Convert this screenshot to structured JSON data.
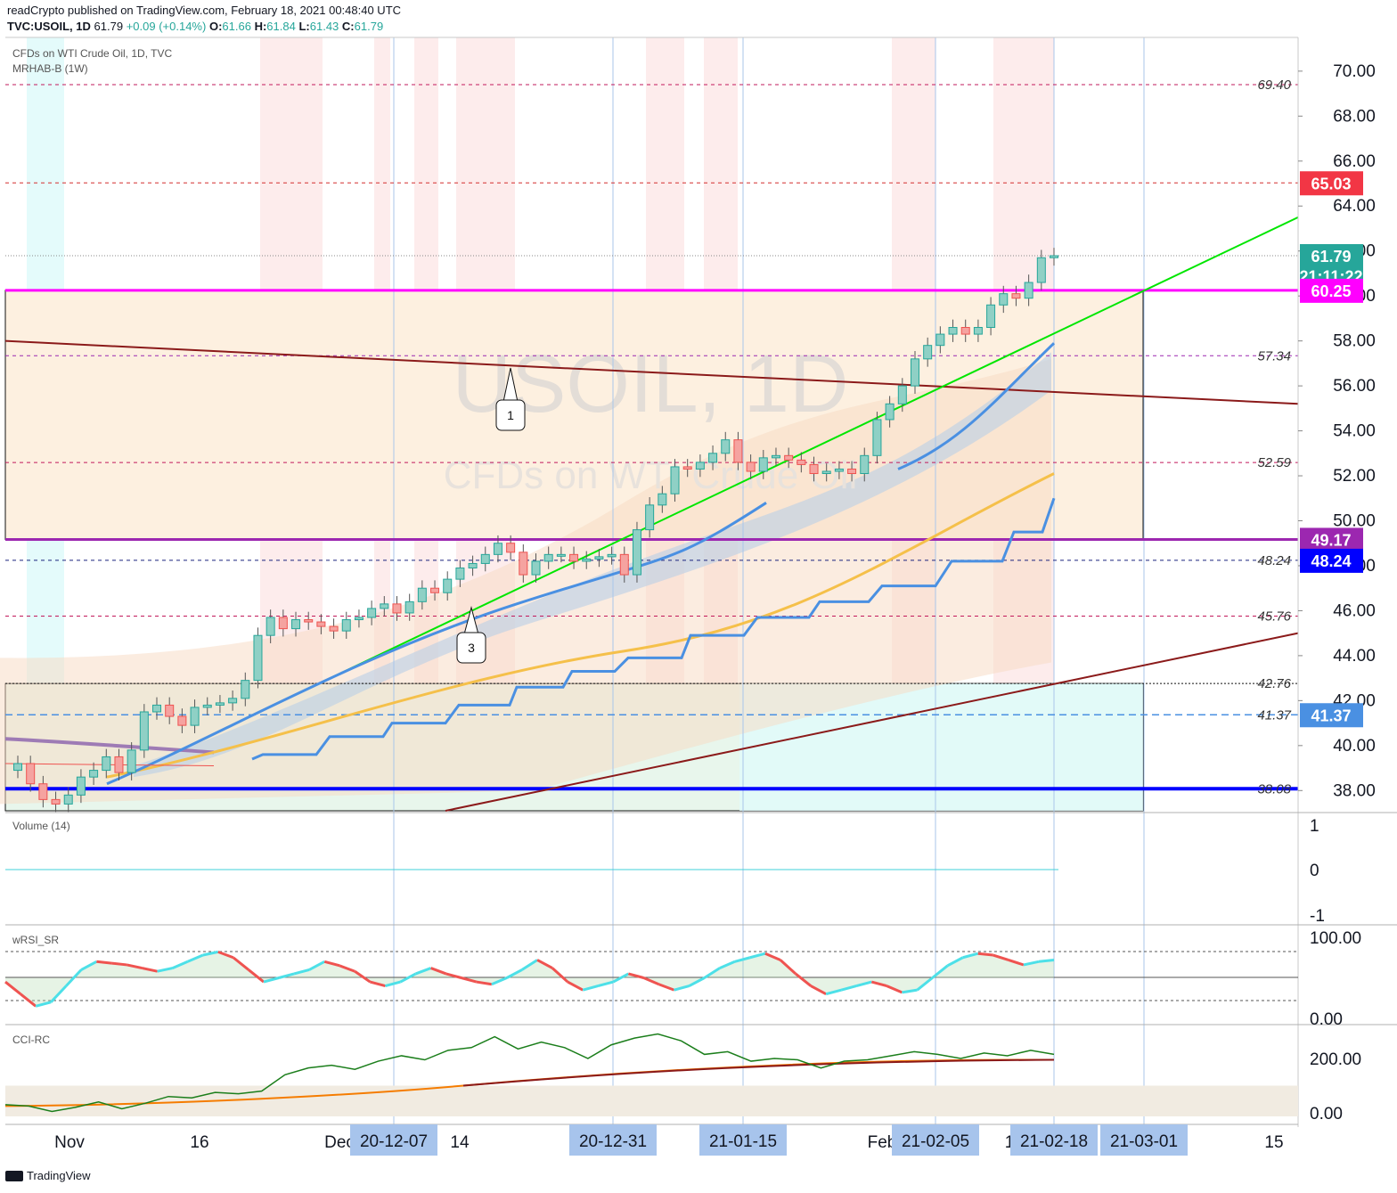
{
  "header": {
    "line1": "readCrypto published on TradingView.com, February 18, 2021 00:48:40 UTC",
    "symbol": "TVC:USOIL, 1D",
    "price": "61.79",
    "change": "+0.09 (+0.14%)",
    "ohlc_o_label": "O:",
    "ohlc_o": "61.66",
    "ohlc_h_label": "H:",
    "ohlc_h": "61.84",
    "ohlc_l_label": "L:",
    "ohlc_l": "61.43",
    "ohlc_c_label": "C:",
    "ohlc_c": "61.79"
  },
  "pane_labels": {
    "main_desc": "CFDs on WTI Crude Oil, 1D, TVC",
    "main_ind": "MRHAB-B (1W)",
    "volume": "Volume (14)",
    "wrsi": "wRSI_SR",
    "cci": "CCI-RC"
  },
  "watermark": {
    "big": "USOIL, 1D",
    "small": "CFDs on WTI Crude Oil"
  },
  "footer": {
    "brand": "TradingView"
  },
  "colors": {
    "up": "#26a69a",
    "down": "#ef5350",
    "magenta": "#ff00ff",
    "purple": "#9c27b0",
    "blue": "#0000ff",
    "light_blue": "#4a90e2",
    "green_line": "#00e600",
    "dark_red": "#8b0000",
    "gold": "#f5c04a",
    "peach_fill": "#fdf0e0",
    "cyan_fill": "#e0fbfb"
  },
  "chart_data": [
    {
      "type": "candlestick",
      "symbol": "TVC:USOIL",
      "interval": "1D",
      "ylim": [
        37.1,
        71.5
      ],
      "y_ticks": [
        "70.00",
        "68.00",
        "66.00",
        "64.00",
        "62.00",
        "60.00",
        "58.00",
        "56.00",
        "54.00",
        "52.00",
        "50.00",
        "48.00",
        "46.00",
        "44.00",
        "42.00",
        "40.00",
        "38.00"
      ],
      "x_ticks": [
        "Nov",
        "16",
        "Dec",
        "14",
        "Feb",
        "1",
        "15"
      ],
      "date_labels": [
        "20-12-07",
        "20-12-31",
        "21-01-15",
        "21-02-05",
        "21-02-18",
        "21-03-01"
      ],
      "price_tags": [
        {
          "label": "65.03",
          "value": 65.03,
          "color": "#f23645"
        },
        {
          "label": "61.79",
          "value": 61.79,
          "color": "#26a69a"
        },
        {
          "label": "21:11:22",
          "value": 60.9,
          "color": "#26a69a"
        },
        {
          "label": "60.25",
          "value": 60.25,
          "color": "#ff00ff"
        },
        {
          "label": "49.17",
          "value": 49.17,
          "color": "#9c27b0"
        },
        {
          "label": "48.24",
          "value": 48.24,
          "color": "#0000ff"
        },
        {
          "label": "41.37",
          "value": 41.37,
          "color": "#4a90e2"
        }
      ],
      "level_labels": [
        {
          "label": "69.40",
          "value": 69.4
        },
        {
          "label": "57.34",
          "value": 57.34
        },
        {
          "label": "52.59",
          "value": 52.59
        },
        {
          "label": "48.24",
          "value": 48.24
        },
        {
          "label": "45.76",
          "value": 45.76
        },
        {
          "label": "42.76",
          "value": 42.76
        },
        {
          "label": "41.37",
          "value": 41.37
        },
        {
          "label": "38.08",
          "value": 38.08
        }
      ],
      "annotations": [
        "1",
        "3"
      ],
      "closes": [
        39.2,
        38.3,
        37.6,
        37.4,
        37.8,
        38.6,
        38.9,
        39.5,
        38.8,
        39.8,
        41.5,
        41.8,
        41.3,
        40.9,
        41.7,
        41.8,
        41.9,
        42.1,
        42.9,
        44.9,
        45.7,
        45.2,
        45.6,
        45.5,
        45.3,
        45.1,
        45.6,
        45.7,
        46.1,
        46.3,
        45.9,
        46.4,
        47.0,
        46.8,
        47.4,
        47.9,
        48.1,
        48.5,
        49.0,
        48.6,
        47.6,
        48.2,
        48.5,
        48.5,
        48.2,
        48.3,
        48.4,
        48.5,
        47.6,
        49.6,
        50.7,
        51.2,
        52.4,
        52.3,
        52.6,
        53.0,
        53.6,
        52.6,
        52.2,
        52.8,
        52.9,
        52.7,
        52.5,
        52.1,
        52.2,
        52.3,
        52.1,
        52.9,
        54.5,
        55.2,
        56.0,
        57.2,
        57.8,
        58.3,
        58.6,
        58.3,
        58.6,
        59.6,
        60.1,
        59.9,
        60.6,
        61.7,
        61.79
      ]
    },
    {
      "type": "line",
      "name": "Volume (14)",
      "y_ticks": [
        "1",
        "0",
        "-1"
      ],
      "values": [
        0
      ]
    },
    {
      "type": "line",
      "name": "wRSI_SR",
      "y_ticks": [
        "100.00",
        "0.00"
      ],
      "values": [
        45,
        30,
        15,
        20,
        40,
        60,
        70,
        68,
        66,
        62,
        58,
        62,
        70,
        78,
        82,
        75,
        60,
        45,
        50,
        55,
        60,
        70,
        65,
        58,
        45,
        40,
        45,
        55,
        62,
        55,
        50,
        45,
        42,
        50,
        60,
        72,
        62,
        45,
        35,
        40,
        45,
        55,
        50,
        42,
        35,
        40,
        50,
        62,
        70,
        75,
        80,
        72,
        55,
        40,
        30,
        35,
        40,
        45,
        40,
        32,
        35,
        50,
        65,
        75,
        80,
        78,
        72,
        66,
        70,
        72
      ]
    },
    {
      "type": "line",
      "name": "CCI-RC",
      "y_ticks": [
        "200.00",
        "0.00"
      ],
      "values": [
        30,
        25,
        5,
        20,
        40,
        15,
        35,
        60,
        55,
        75,
        70,
        80,
        140,
        165,
        175,
        160,
        190,
        210,
        195,
        230,
        240,
        280,
        235,
        260,
        240,
        200,
        250,
        275,
        290,
        265,
        215,
        225,
        190,
        200,
        195,
        165,
        190,
        195,
        210,
        225,
        215,
        200,
        220,
        210,
        230,
        215
      ]
    }
  ]
}
